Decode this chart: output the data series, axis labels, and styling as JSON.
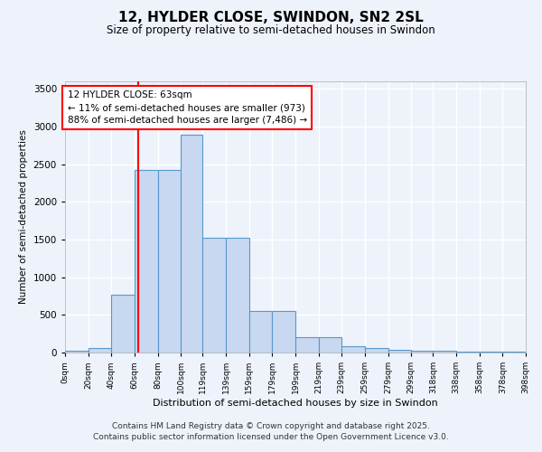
{
  "title": "12, HYLDER CLOSE, SWINDON, SN2 2SL",
  "subtitle": "Size of property relative to semi-detached houses in Swindon",
  "xlabel": "Distribution of semi-detached houses by size in Swindon",
  "ylabel": "Number of semi-detached properties",
  "bar_values": [
    30,
    60,
    770,
    2430,
    2430,
    2890,
    1520,
    1520,
    550,
    550,
    210,
    210,
    80,
    60,
    40,
    30,
    20,
    10,
    10,
    10
  ],
  "bin_edges": [
    0,
    20,
    40,
    60,
    80,
    100,
    119,
    139,
    159,
    179,
    199,
    219,
    239,
    259,
    279,
    299,
    318,
    338,
    358,
    378,
    398
  ],
  "tick_labels": [
    "0sqm",
    "20sqm",
    "40sqm",
    "60sqm",
    "80sqm",
    "100sqm",
    "119sqm",
    "139sqm",
    "159sqm",
    "179sqm",
    "199sqm",
    "219sqm",
    "239sqm",
    "259sqm",
    "279sqm",
    "299sqm",
    "318sqm",
    "338sqm",
    "358sqm",
    "378sqm",
    "398sqm"
  ],
  "bar_color": "#c8d8f0",
  "bar_edge_color": "#5599cc",
  "red_line_x": 63,
  "annotation_text": "12 HYLDER CLOSE: 63sqm\n← 11% of semi-detached houses are smaller (973)\n88% of semi-detached houses are larger (7,486) →",
  "annotation_box_color": "white",
  "annotation_box_edge": "red",
  "ylim": [
    0,
    3600
  ],
  "yticks": [
    0,
    500,
    1000,
    1500,
    2000,
    2500,
    3000,
    3500
  ],
  "background_color": "#eef2fb",
  "grid_color": "white",
  "footer_line1": "Contains HM Land Registry data © Crown copyright and database right 2025.",
  "footer_line2": "Contains public sector information licensed under the Open Government Licence v3.0."
}
